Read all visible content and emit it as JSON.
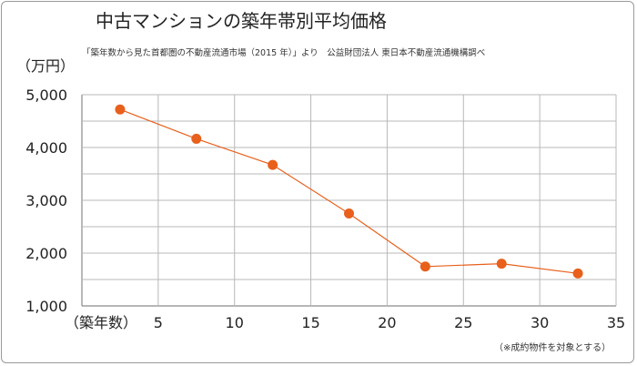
{
  "chart_data": {
    "type": "line",
    "title": "中古マンションの築年帯別平均価格",
    "subtitle": "「築年数から見た首都圏の不動産流通市場（2015 年）」より　公益財団法人 東日本不動産流通機構調べ",
    "ylabel": "（万円）",
    "xlabel": "（築年数）",
    "note": "（※成約物件を対象とする）",
    "x": [
      2.5,
      7.5,
      12.5,
      17.5,
      22.5,
      27.5,
      32.5
    ],
    "values": [
      4720,
      4165,
      3670,
      2750,
      1745,
      1800,
      1615
    ],
    "xlim": [
      0,
      35
    ],
    "ylim": [
      1000,
      5000
    ],
    "xticks": [
      5,
      10,
      15,
      20,
      25,
      30,
      35
    ],
    "yticks": [
      1000,
      2000,
      3000,
      4000,
      5000
    ],
    "ytick_labels": [
      "1,000",
      "2,000",
      "3,000",
      "4,000",
      "5,000"
    ],
    "grid": true,
    "color": "#e8601c",
    "grid_color": "#b8b8b8"
  }
}
